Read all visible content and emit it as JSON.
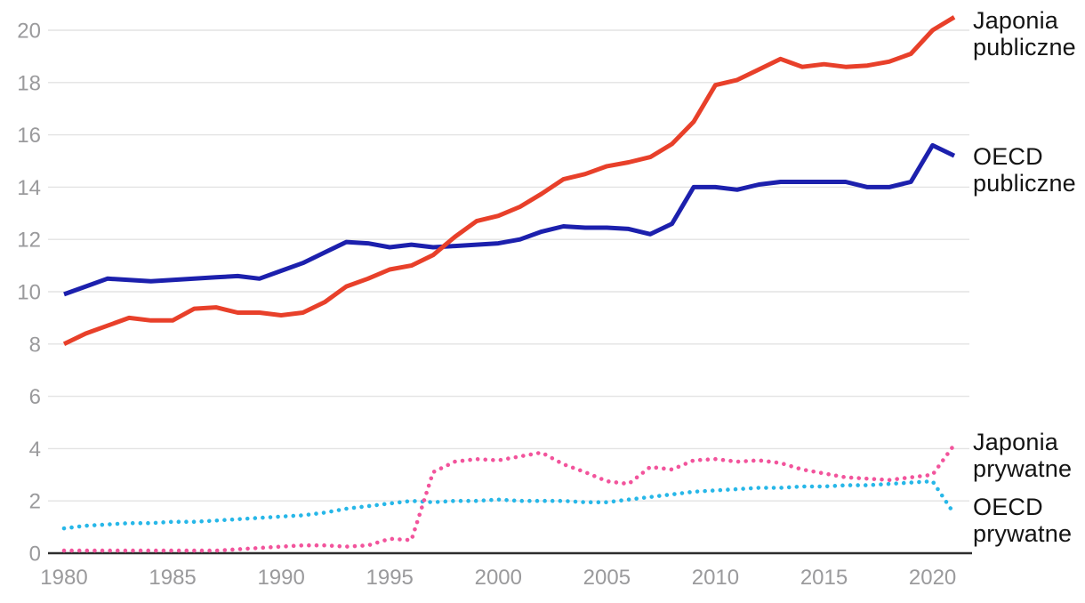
{
  "chart_data": {
    "type": "line",
    "title": "",
    "xlabel": "",
    "ylabel": "",
    "x": [
      1980,
      1981,
      1982,
      1983,
      1984,
      1985,
      1986,
      1987,
      1988,
      1989,
      1990,
      1991,
      1992,
      1993,
      1994,
      1995,
      1996,
      1997,
      1998,
      1999,
      2000,
      2001,
      2002,
      2003,
      2004,
      2005,
      2006,
      2007,
      2008,
      2009,
      2010,
      2011,
      2012,
      2013,
      2014,
      2015,
      2016,
      2017,
      2018,
      2019,
      2020,
      2021
    ],
    "series": [
      {
        "name": "Japonia publiczne",
        "color": "#e8402a",
        "line_style": "solid",
        "values": [
          8.0,
          8.4,
          8.7,
          9.0,
          8.9,
          8.9,
          9.35,
          9.4,
          9.2,
          9.2,
          9.1,
          9.2,
          9.6,
          10.2,
          10.5,
          10.85,
          11.0,
          11.4,
          12.1,
          12.7,
          12.9,
          13.25,
          13.75,
          14.3,
          14.5,
          14.8,
          14.95,
          15.15,
          15.65,
          16.5,
          17.9,
          18.1,
          18.5,
          18.9,
          18.6,
          18.7,
          18.6,
          18.65,
          18.8,
          19.1,
          20.0,
          20.5
        ]
      },
      {
        "name": "OECD publiczne",
        "color": "#1c20ad",
        "line_style": "solid",
        "values": [
          9.9,
          10.2,
          10.5,
          10.45,
          10.4,
          10.45,
          10.5,
          10.55,
          10.6,
          10.5,
          10.8,
          11.1,
          11.5,
          11.9,
          11.85,
          11.7,
          11.8,
          11.7,
          11.75,
          11.8,
          11.85,
          12.0,
          12.3,
          12.5,
          12.45,
          12.45,
          12.4,
          12.2,
          12.6,
          14.0,
          14.0,
          13.9,
          14.1,
          14.2,
          14.2,
          14.2,
          14.2,
          14.0,
          14.0,
          14.2,
          15.6,
          15.2
        ]
      },
      {
        "name": "Japonia prywatne",
        "color": "#f2549c",
        "line_style": "dotted",
        "values": [
          0.1,
          0.1,
          0.1,
          0.1,
          0.1,
          0.1,
          0.1,
          0.1,
          0.15,
          0.2,
          0.25,
          0.3,
          0.3,
          0.25,
          0.3,
          0.55,
          0.5,
          3.1,
          3.5,
          3.6,
          3.55,
          3.7,
          3.85,
          3.4,
          3.1,
          2.75,
          2.65,
          3.3,
          3.2,
          3.55,
          3.6,
          3.5,
          3.55,
          3.45,
          3.2,
          3.05,
          2.9,
          2.85,
          2.8,
          2.9,
          3.0,
          4.15
        ]
      },
      {
        "name": "OECD prywatne",
        "color": "#27b7e8",
        "line_style": "dotted",
        "values": [
          0.95,
          1.05,
          1.1,
          1.15,
          1.15,
          1.2,
          1.2,
          1.25,
          1.3,
          1.35,
          1.4,
          1.45,
          1.55,
          1.7,
          1.8,
          1.9,
          2.0,
          1.95,
          2.0,
          2.0,
          2.05,
          2.0,
          2.0,
          2.0,
          1.95,
          1.95,
          2.05,
          2.15,
          2.25,
          2.35,
          2.4,
          2.45,
          2.5,
          2.5,
          2.55,
          2.55,
          2.6,
          2.6,
          2.65,
          2.7,
          2.75,
          1.5
        ]
      }
    ],
    "x_ticks": [
      1980,
      1985,
      1990,
      1995,
      2000,
      2005,
      2010,
      2015,
      2020
    ],
    "y_ticks": [
      0,
      2,
      4,
      6,
      8,
      10,
      12,
      14,
      16,
      18,
      20
    ],
    "ylim": [
      0,
      20.6
    ],
    "grid": "horizontal",
    "grid_color": "#e3e3e3",
    "axis_color": "#2d2d2d",
    "tick_label_color": "#9a9a9c",
    "legend_position": "end-of-line-labels-right"
  }
}
